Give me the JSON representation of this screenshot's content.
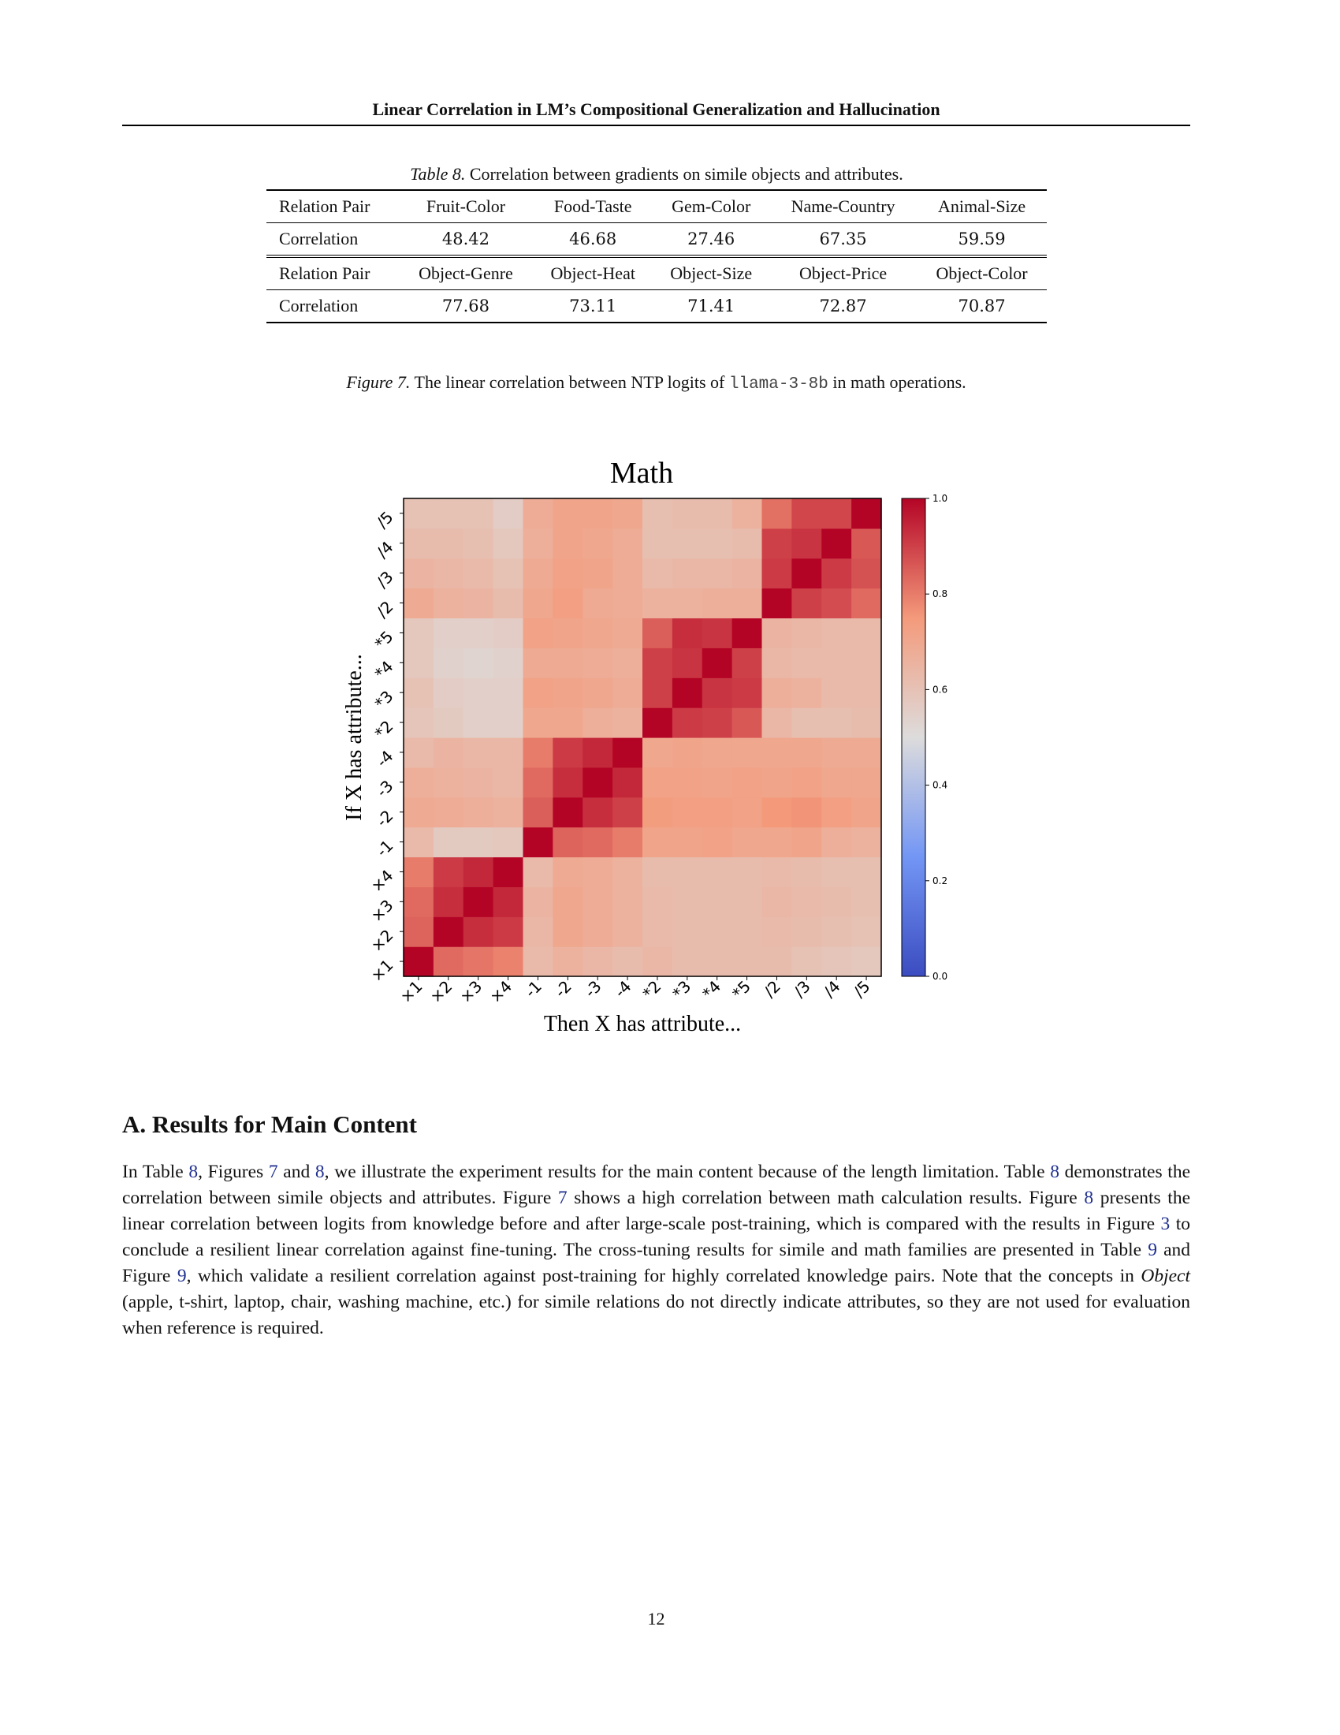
{
  "header": {
    "title": "Linear Correlation in LM’s Compositional Generalization and Hallucination"
  },
  "table": {
    "caption_label": "Table 8.",
    "caption_text": "Correlation between gradients on simile objects and attributes.",
    "part1": {
      "header": [
        "Relation Pair",
        "Fruit-Color",
        "Food-Taste",
        "Gem-Color",
        "Name-Country",
        "Animal-Size"
      ],
      "row": [
        "Correlation",
        "48.42",
        "46.68",
        "27.46",
        "67.35",
        "59.59"
      ]
    },
    "part2": {
      "header": [
        "Relation Pair",
        "Object-Genre",
        "Object-Heat",
        "Object-Size",
        "Object-Price",
        "Object-Color"
      ],
      "row": [
        "Correlation",
        "77.68",
        "73.11",
        "71.41",
        "72.87",
        "70.87"
      ]
    }
  },
  "figure": {
    "caption_label": "Figure 7.",
    "caption_before": "The linear correlation between NTP logits of ",
    "caption_code": "llama-3-8b",
    "caption_after": " in math operations."
  },
  "chart_data": {
    "type": "heatmap",
    "title": "Math",
    "xlabel": "Then X has attribute...",
    "ylabel": "If X has attribute...",
    "x_categories": [
      "×1",
      "×2",
      "×3",
      "×4",
      "-1",
      "-2",
      "-3",
      "-4",
      "*2",
      "*3",
      "*4",
      "*5",
      "/2",
      "/3",
      "/4",
      "/5"
    ],
    "y_categories_bottom_to_top": [
      "×1",
      "×2",
      "×3",
      "×4",
      "-1",
      "-2",
      "-3",
      "-4",
      "*2",
      "*3",
      "*4",
      "*5",
      "/2",
      "/3",
      "/4",
      "/5"
    ],
    "values_bottom_to_top": [
      [
        1.0,
        0.83,
        0.81,
        0.79,
        0.63,
        0.66,
        0.64,
        0.62,
        0.64,
        0.62,
        0.62,
        0.62,
        0.62,
        0.6,
        0.59,
        0.58
      ],
      [
        0.84,
        1.0,
        0.93,
        0.91,
        0.64,
        0.7,
        0.68,
        0.66,
        0.63,
        0.62,
        0.62,
        0.62,
        0.63,
        0.62,
        0.61,
        0.6
      ],
      [
        0.83,
        0.93,
        1.0,
        0.94,
        0.65,
        0.7,
        0.68,
        0.66,
        0.63,
        0.62,
        0.62,
        0.62,
        0.64,
        0.63,
        0.62,
        0.61
      ],
      [
        0.8,
        0.91,
        0.94,
        1.0,
        0.63,
        0.69,
        0.68,
        0.66,
        0.62,
        0.62,
        0.62,
        0.62,
        0.63,
        0.62,
        0.61,
        0.61
      ],
      [
        0.63,
        0.57,
        0.57,
        0.58,
        1.0,
        0.84,
        0.83,
        0.8,
        0.71,
        0.71,
        0.72,
        0.7,
        0.7,
        0.71,
        0.67,
        0.66
      ],
      [
        0.69,
        0.68,
        0.67,
        0.66,
        0.85,
        1.0,
        0.93,
        0.9,
        0.74,
        0.73,
        0.73,
        0.72,
        0.75,
        0.76,
        0.73,
        0.71
      ],
      [
        0.67,
        0.66,
        0.65,
        0.64,
        0.83,
        0.93,
        1.0,
        0.94,
        0.72,
        0.72,
        0.71,
        0.72,
        0.71,
        0.72,
        0.7,
        0.7
      ],
      [
        0.63,
        0.65,
        0.64,
        0.64,
        0.8,
        0.91,
        0.94,
        1.0,
        0.7,
        0.71,
        0.7,
        0.7,
        0.7,
        0.7,
        0.69,
        0.69
      ],
      [
        0.59,
        0.57,
        0.55,
        0.55,
        0.7,
        0.7,
        0.67,
        0.66,
        1.0,
        0.91,
        0.9,
        0.86,
        0.64,
        0.61,
        0.61,
        0.62
      ],
      [
        0.6,
        0.56,
        0.55,
        0.55,
        0.72,
        0.71,
        0.7,
        0.68,
        0.9,
        1.0,
        0.92,
        0.91,
        0.67,
        0.66,
        0.63,
        0.63
      ],
      [
        0.58,
        0.54,
        0.53,
        0.54,
        0.69,
        0.69,
        0.68,
        0.67,
        0.9,
        0.92,
        1.0,
        0.9,
        0.64,
        0.63,
        0.63,
        0.63
      ],
      [
        0.58,
        0.55,
        0.55,
        0.56,
        0.72,
        0.71,
        0.7,
        0.69,
        0.85,
        0.93,
        0.92,
        1.0,
        0.65,
        0.64,
        0.63,
        0.63
      ],
      [
        0.69,
        0.66,
        0.65,
        0.62,
        0.7,
        0.73,
        0.69,
        0.68,
        0.66,
        0.66,
        0.67,
        0.67,
        1.0,
        0.9,
        0.88,
        0.83
      ],
      [
        0.65,
        0.64,
        0.63,
        0.6,
        0.69,
        0.72,
        0.71,
        0.68,
        0.63,
        0.64,
        0.64,
        0.65,
        0.91,
        1.0,
        0.91,
        0.87
      ],
      [
        0.62,
        0.62,
        0.61,
        0.58,
        0.67,
        0.71,
        0.7,
        0.68,
        0.61,
        0.61,
        0.61,
        0.62,
        0.9,
        0.92,
        1.0,
        0.86
      ],
      [
        0.6,
        0.6,
        0.6,
        0.56,
        0.68,
        0.71,
        0.71,
        0.7,
        0.61,
        0.62,
        0.62,
        0.66,
        0.82,
        0.89,
        0.89,
        1.0
      ]
    ],
    "colorbar": {
      "min": 0.0,
      "max": 1.0,
      "ticks": [
        "0.0",
        "0.2",
        "0.4",
        "0.6",
        "0.8",
        "1.0"
      ],
      "colormap": "coolwarm"
    },
    "grid": false
  },
  "section": {
    "title": "A. Results for Main Content",
    "paragraph": [
      {
        "t": "In Table "
      },
      {
        "r": "8"
      },
      {
        "t": ", Figures "
      },
      {
        "r": "7"
      },
      {
        "t": " and "
      },
      {
        "r": "8"
      },
      {
        "t": ", we illustrate the experiment results for the main content because of the length limitation. Table "
      },
      {
        "r": "8"
      },
      {
        "t": " demonstrates the correlation between simile objects and attributes. Figure "
      },
      {
        "r": "7"
      },
      {
        "t": " shows a high correlation between math calculation results. Figure "
      },
      {
        "r": "8"
      },
      {
        "t": " presents the linear correlation between logits from knowledge before and after large-scale post-training, which is compared with the results in Figure "
      },
      {
        "r": "3"
      },
      {
        "t": " to conclude a resilient linear correlation against fine-tuning. The cross-tuning results for simile and math families are presented in Table "
      },
      {
        "r": "9"
      },
      {
        "t": " and Figure "
      },
      {
        "r": "9"
      },
      {
        "t": ", which validate a resilient correlation against post-training for highly correlated knowledge pairs. Note that the concepts in "
      },
      {
        "i": "Object"
      },
      {
        "t": " (apple, t-shirt, laptop, chair, washing machine, etc.) for simile relations do not directly indicate attributes, so they are not used for evaluation when reference is required."
      }
    ]
  },
  "page_number": "12"
}
